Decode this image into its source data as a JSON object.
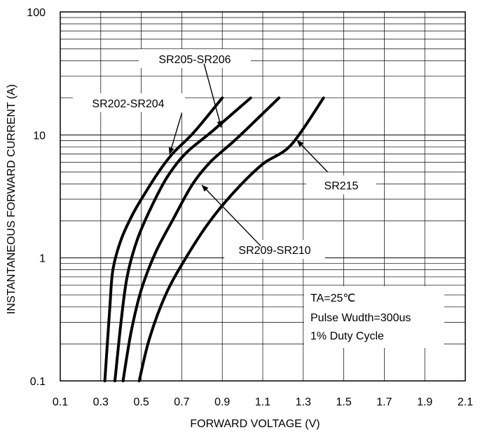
{
  "chart_data": {
    "type": "line",
    "xlabel": "FORWARD VOLTAGE (V)",
    "ylabel": "INSTANTANEOUS FORWARD CURRENT (A)",
    "xlim": [
      0.1,
      2.1
    ],
    "ylim": [
      0.1,
      100
    ],
    "y_scale": "log",
    "x_ticks": [
      "0.1",
      "0.3",
      "0.5",
      "0.7",
      "0.9",
      "1.1",
      "1.3",
      "1.5",
      "1.7",
      "1.9",
      "2.1"
    ],
    "x_tick_values": [
      0.1,
      0.3,
      0.5,
      0.7,
      0.9,
      1.1,
      1.3,
      1.5,
      1.7,
      1.9,
      2.1
    ],
    "y_ticks": [
      "0.1",
      "1",
      "10",
      "100"
    ],
    "y_tick_values": [
      0.1,
      1,
      10,
      100
    ],
    "grid": true,
    "line_color": "#000000",
    "series": [
      {
        "name": "SR202-SR204",
        "points": [
          [
            0.32,
            0.1
          ],
          [
            0.345,
            0.4
          ],
          [
            0.36,
            0.8
          ],
          [
            0.4,
            1.4
          ],
          [
            0.46,
            2.3
          ],
          [
            0.53,
            3.6
          ],
          [
            0.6,
            5.4
          ],
          [
            0.66,
            7.2
          ],
          [
            0.76,
            10.5
          ],
          [
            0.9,
            20
          ]
        ]
      },
      {
        "name": "SR205-SR206",
        "points": [
          [
            0.37,
            0.1
          ],
          [
            0.4,
            0.3
          ],
          [
            0.43,
            0.7
          ],
          [
            0.48,
            1.4
          ],
          [
            0.55,
            2.6
          ],
          [
            0.63,
            4.6
          ],
          [
            0.72,
            7.1
          ],
          [
            0.85,
            10.7
          ],
          [
            1.04,
            20
          ]
        ]
      },
      {
        "name": "SR209-SR210",
        "points": [
          [
            0.41,
            0.1
          ],
          [
            0.45,
            0.25
          ],
          [
            0.5,
            0.55
          ],
          [
            0.57,
            1.1
          ],
          [
            0.66,
            2.1
          ],
          [
            0.75,
            3.9
          ],
          [
            0.84,
            6.0
          ],
          [
            0.97,
            9.3
          ],
          [
            1.18,
            20
          ]
        ]
      },
      {
        "name": "SR215",
        "points": [
          [
            0.49,
            0.1
          ],
          [
            0.54,
            0.22
          ],
          [
            0.62,
            0.5
          ],
          [
            0.72,
            1.0
          ],
          [
            0.84,
            2.0
          ],
          [
            0.97,
            3.6
          ],
          [
            1.1,
            5.8
          ],
          [
            1.24,
            8.3
          ],
          [
            1.4,
            20
          ]
        ]
      }
    ],
    "annotations": [
      "TA=25℃",
      "Pulse Wudth=300us",
      "1% Duty Cycle"
    ]
  }
}
